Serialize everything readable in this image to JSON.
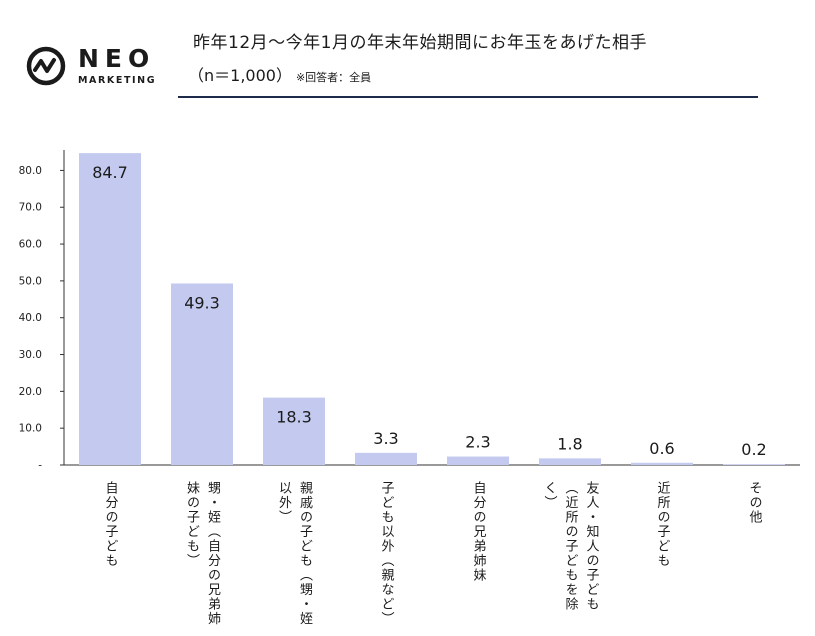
{
  "brand": {
    "name": "NEO",
    "sub": "MARKETING"
  },
  "header": {
    "title": "昨年12月〜今年1月の年末年始期間にお年玉をあげた相手",
    "subtitle": "（n＝1,000）",
    "note": "※回答者：全員"
  },
  "colors": {
    "bar": "#c4caef",
    "axis": "#333333",
    "rule": "#1e2a4a"
  },
  "chart_data": {
    "type": "bar",
    "categories": [
      "自分の子ども",
      "甥・姪（自分の兄弟姉妹の子ども）",
      "親戚の子ども（甥・姪以外）",
      "子ども以外（親など）",
      "自分の兄弟姉妹",
      "友人・知人の子ども（近所の子どもを除く）",
      "近所の子ども",
      "その他"
    ],
    "category_lines": [
      [
        "自分の子ども"
      ],
      [
        "甥・姪（自分の兄弟姉",
        "妹の子ども）"
      ],
      [
        "親戚の子ども（甥・姪",
        "以外）"
      ],
      [
        "子ども以外（親など）"
      ],
      [
        "自分の兄弟姉妹"
      ],
      [
        "友人・知人の子ども",
        "（近所の子どもを除",
        "く）"
      ],
      [
        "近所の子ども"
      ],
      [
        "その他"
      ]
    ],
    "values": [
      84.7,
      49.3,
      18.3,
      3.3,
      2.3,
      1.8,
      0.6,
      0.2
    ],
    "value_labels": [
      "84.7",
      "49.3",
      "18.3",
      "3.3",
      "2.3",
      "1.8",
      "0.6",
      "0.2"
    ],
    "ylim": [
      0,
      85
    ],
    "yticks": [
      0,
      10,
      20,
      30,
      40,
      50,
      60,
      70,
      80
    ],
    "ytick_labels": [
      "-",
      "10.0",
      "20.0",
      "30.0",
      "40.0",
      "50.0",
      "60.0",
      "70.0",
      "80.0"
    ],
    "grid": false,
    "legend": "none"
  }
}
